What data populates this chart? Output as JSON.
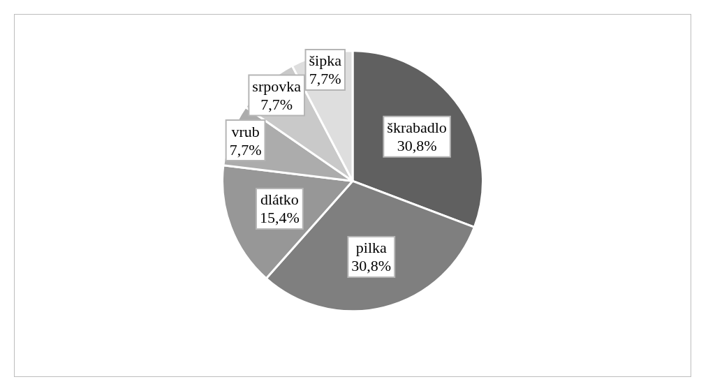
{
  "chart_data": {
    "type": "pie",
    "categories": [
      "škrabadlo",
      "pilka",
      "dlátko",
      "vrub",
      "srpovka",
      "šipka"
    ],
    "values": [
      30.8,
      30.8,
      15.4,
      7.7,
      7.7,
      7.7
    ],
    "value_labels": [
      "30,8%",
      "30,8%",
      "15,4%",
      "7,7%",
      "7,7%",
      "7,7%"
    ],
    "colors": [
      "#606060",
      "#7f7f7f",
      "#979797",
      "#acacac",
      "#c9c9c9",
      "#dedede"
    ],
    "legend": false
  }
}
